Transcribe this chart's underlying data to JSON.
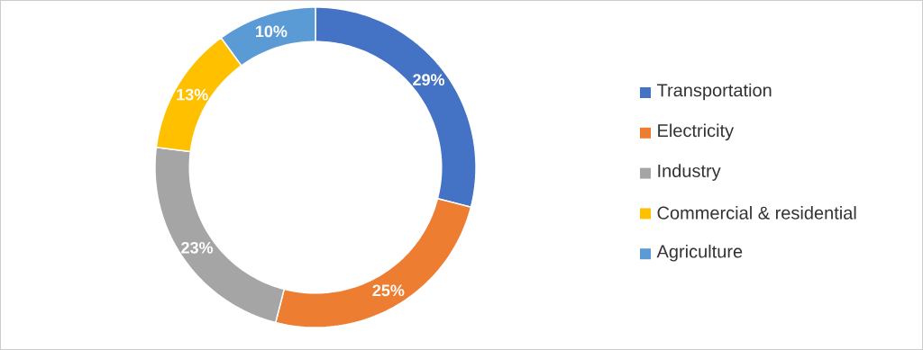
{
  "chart_data": {
    "type": "donut",
    "categories": [
      "Transportation",
      "Electricity",
      "Industry",
      "Commercial & residential",
      "Agriculture"
    ],
    "values": [
      29,
      25,
      23,
      13,
      10
    ],
    "colors": [
      "#4472c4",
      "#ed7d31",
      "#a5a5a5",
      "#ffc000",
      "#5b9bd5"
    ],
    "value_labels": [
      "29%",
      "25%",
      "23%",
      "13%",
      "10%"
    ],
    "legend": "right"
  }
}
